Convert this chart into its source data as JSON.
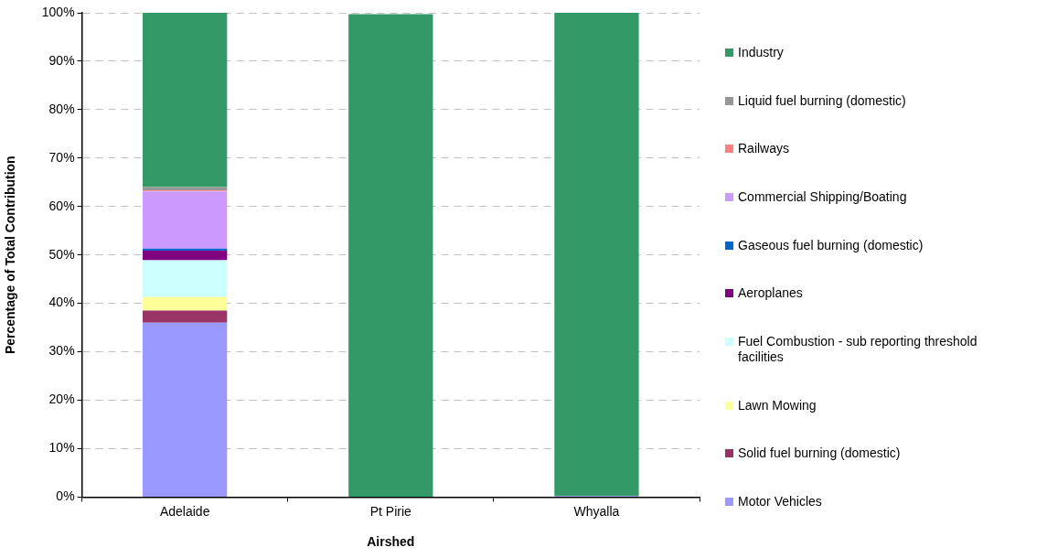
{
  "chart_data": {
    "type": "bar",
    "stacked": true,
    "xlabel": "Airshed",
    "ylabel": "Percentage of Total Contribution",
    "categories": [
      "Adelaide",
      "Pt Pirie",
      "Whyalla"
    ],
    "series": [
      {
        "name": "Motor Vehicles",
        "color": "#9999ff",
        "values": [
          36.0,
          0,
          0.2
        ]
      },
      {
        "name": "Solid fuel burning (domestic)",
        "color": "#993366",
        "values": [
          2.5,
          0,
          0
        ]
      },
      {
        "name": "Lawn Mowing",
        "color": "#ffff99",
        "values": [
          2.8,
          0,
          0
        ]
      },
      {
        "name": "Fuel Combustion - sub reporting threshold facilities",
        "color": "#ccffff",
        "values": [
          7.6,
          0,
          0
        ]
      },
      {
        "name": "Aeroplanes",
        "color": "#800080",
        "values": [
          2.0,
          0,
          0
        ]
      },
      {
        "name": "Gaseous fuel burning (domestic)",
        "color": "#0066cc",
        "values": [
          0.4,
          0,
          0
        ]
      },
      {
        "name": "Commercial Shipping/Boating",
        "color": "#cc99ff",
        "values": [
          11.8,
          0,
          0
        ]
      },
      {
        "name": "Railways",
        "color": "#ff8080",
        "values": [
          0.2,
          0,
          0
        ]
      },
      {
        "name": "Liquid fuel burning (domestic)",
        "color": "#969696",
        "values": [
          0.7,
          0,
          0
        ]
      },
      {
        "name": "Industry",
        "color": "#339966",
        "values": [
          36.0,
          99.7,
          99.8
        ]
      }
    ],
    "ylim": [
      0,
      100
    ],
    "yticks": [
      {
        "value": 0,
        "label": "0%"
      },
      {
        "value": 10,
        "label": "10%"
      },
      {
        "value": 20,
        "label": "20%"
      },
      {
        "value": 30,
        "label": "30%"
      },
      {
        "value": 40,
        "label": "40%"
      },
      {
        "value": 50,
        "label": "50%"
      },
      {
        "value": 60,
        "label": "60%"
      },
      {
        "value": 70,
        "label": "70%"
      },
      {
        "value": 80,
        "label": "80%"
      },
      {
        "value": 90,
        "label": "90%"
      },
      {
        "value": 100,
        "label": "100%"
      }
    ],
    "grid": "y",
    "legend": "right"
  }
}
